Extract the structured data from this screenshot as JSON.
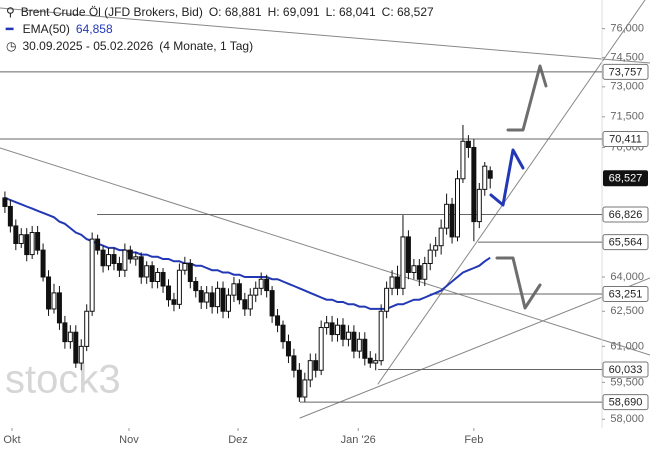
{
  "header": {
    "instrument": "Brent Crude Öl (JFD Brokers, Bid)",
    "ohlc": [
      "O: 68,881",
      "H: 69,091",
      "L: 68,041",
      "C: 68,527"
    ],
    "indicator_value": "64,858",
    "range": "30.09.2025 - 05.02.2026",
    "span": "(4 Monate, 1 Tag)"
  },
  "watermark": "stock3",
  "chart_data": {
    "type": "candlestick",
    "log_scale": true,
    "color_up": "#ffffff",
    "color_down": "#111111",
    "open": [
      67.6,
      67.2,
      66.3,
      65.5,
      65.9,
      65.0,
      66.0,
      65.2,
      64.0,
      62.6,
      63.3,
      62.0,
      61.2,
      61.6,
      60.3,
      61.0,
      62.5,
      65.7,
      65.2,
      64.5,
      65.0,
      64.6,
      64.3,
      65.2,
      64.8,
      64.9,
      64.0,
      64.5,
      63.8,
      64.2,
      63.6,
      63.0,
      62.8,
      64.3,
      64.6,
      63.8,
      63.4,
      62.9,
      63.3,
      62.7,
      63.5,
      62.5,
      63.2,
      63.7,
      63.0,
      62.6,
      63.2,
      63.5,
      63.9,
      63.4,
      62.3,
      61.9,
      61.2,
      60.6,
      60.0,
      58.9,
      59.6,
      60.4,
      60.0,
      61.8,
      62.0,
      61.5,
      61.9,
      61.3,
      61.6,
      60.8,
      61.3,
      60.5,
      60.3,
      60.4,
      62.5,
      63.5,
      64.0,
      63.5,
      65.8,
      64.2,
      64.5,
      63.9,
      64.6,
      65.2,
      65.4,
      66.2,
      67.3,
      65.8,
      68.5,
      70.3,
      70.0,
      66.5,
      68.0,
      68.881
    ],
    "high": [
      67.9,
      67.5,
      66.6,
      66.2,
      66.2,
      66.3,
      66.3,
      65.5,
      64.3,
      63.7,
      63.6,
      62.3,
      61.9,
      61.9,
      61.3,
      62.8,
      66.0,
      65.9,
      65.4,
      65.3,
      65.3,
      64.9,
      65.5,
      65.4,
      65.1,
      65.1,
      64.7,
      64.7,
      64.4,
      64.4,
      63.9,
      63.3,
      64.6,
      64.9,
      64.8,
      64.0,
      63.6,
      63.6,
      63.6,
      63.8,
      63.8,
      63.5,
      64.0,
      63.9,
      63.3,
      63.5,
      63.8,
      64.2,
      64.1,
      63.6,
      62.6,
      62.1,
      61.5,
      60.9,
      60.3,
      59.9,
      60.7,
      60.7,
      62.1,
      62.3,
      62.3,
      62.2,
      62.2,
      61.9,
      61.9,
      61.6,
      61.6,
      60.8,
      60.7,
      62.8,
      63.8,
      64.3,
      64.5,
      66.8,
      66.1,
      64.8,
      64.8,
      64.9,
      65.5,
      65.8,
      66.6,
      67.8,
      67.6,
      68.9,
      71.1,
      70.6,
      70.4,
      68.3,
      69.3,
      69.091
    ],
    "low": [
      66.9,
      66.0,
      65.2,
      65.3,
      64.7,
      64.8,
      65.0,
      63.8,
      62.3,
      62.4,
      61.7,
      60.9,
      60.9,
      60.1,
      60.0,
      60.8,
      62.3,
      65.0,
      64.2,
      64.3,
      64.3,
      64.0,
      64.0,
      64.6,
      64.5,
      63.7,
      63.7,
      63.5,
      63.5,
      63.3,
      62.7,
      62.5,
      62.6,
      64.1,
      63.5,
      63.1,
      62.6,
      62.6,
      62.4,
      62.4,
      62.2,
      62.2,
      62.9,
      62.8,
      62.3,
      62.3,
      62.9,
      63.2,
      63.1,
      62.0,
      61.6,
      60.9,
      60.3,
      59.7,
      58.7,
      58.7,
      59.3,
      59.7,
      59.8,
      61.5,
      61.2,
      61.2,
      61.0,
      61.0,
      60.5,
      60.5,
      60.2,
      60.1,
      60.0,
      60.2,
      62.2,
      63.2,
      63.2,
      63.2,
      63.9,
      63.9,
      63.6,
      63.6,
      64.3,
      64.9,
      65.0,
      65.9,
      65.5,
      65.6,
      68.3,
      69.5,
      65.6,
      66.2,
      67.7,
      68.041
    ],
    "close": [
      67.2,
      66.3,
      65.5,
      65.9,
      65.0,
      66.0,
      65.2,
      64.0,
      62.6,
      63.3,
      62.0,
      61.2,
      61.6,
      60.3,
      61.0,
      62.5,
      65.7,
      65.2,
      64.5,
      65.0,
      64.6,
      64.3,
      65.2,
      64.8,
      64.9,
      64.0,
      64.5,
      63.8,
      64.2,
      63.6,
      63.0,
      62.8,
      64.3,
      64.6,
      63.8,
      63.4,
      62.9,
      63.3,
      62.7,
      63.5,
      62.5,
      63.2,
      63.7,
      63.0,
      62.6,
      63.2,
      63.5,
      63.9,
      63.4,
      62.3,
      61.9,
      61.2,
      60.6,
      60.0,
      58.9,
      59.6,
      60.4,
      60.0,
      61.8,
      62.0,
      61.5,
      61.9,
      61.3,
      61.6,
      60.8,
      61.3,
      60.5,
      60.3,
      60.4,
      62.5,
      63.5,
      64.0,
      63.5,
      65.8,
      64.2,
      64.5,
      63.9,
      64.6,
      65.2,
      65.4,
      66.2,
      67.3,
      65.8,
      68.5,
      70.3,
      70.0,
      66.5,
      68.0,
      69.1,
      68.527
    ],
    "ema": {
      "name": "EMA(50)",
      "color": "#2338b5",
      "values": [
        67.6,
        67.5,
        67.4,
        67.3,
        67.2,
        67.1,
        67.0,
        66.9,
        66.8,
        66.7,
        66.5,
        66.4,
        66.2,
        66.0,
        65.9,
        65.7,
        65.6,
        65.5,
        65.4,
        65.3,
        65.3,
        65.2,
        65.2,
        65.1,
        65.1,
        65.0,
        65.0,
        64.9,
        64.9,
        64.8,
        64.8,
        64.7,
        64.7,
        64.6,
        64.6,
        64.5,
        64.5,
        64.4,
        64.3,
        64.3,
        64.2,
        64.2,
        64.1,
        64.1,
        64.0,
        64.0,
        64.0,
        64.0,
        64.0,
        63.9,
        63.9,
        63.8,
        63.7,
        63.6,
        63.5,
        63.4,
        63.3,
        63.2,
        63.1,
        63.0,
        63.0,
        62.9,
        62.9,
        62.8,
        62.8,
        62.7,
        62.7,
        62.6,
        62.6,
        62.6,
        62.6,
        62.7,
        62.8,
        62.8,
        62.9,
        63.0,
        63.0,
        63.1,
        63.2,
        63.3,
        63.4,
        63.6,
        63.8,
        64.0,
        64.2,
        64.3,
        64.4,
        64.5,
        64.7,
        64.858
      ]
    },
    "xlim": [
      -0.9,
      109.5
    ],
    "xticks": [
      {
        "value": 1.3,
        "label": "Okt"
      },
      {
        "value": 22.75,
        "label": "Nov"
      },
      {
        "value": 42.75,
        "label": "Dez"
      },
      {
        "value": 64.8,
        "label": "Jan '26"
      },
      {
        "value": 86,
        "label": "Feb"
      }
    ],
    "ylim": [
      57.65,
      77.52
    ],
    "yticks": [
      {
        "value": 76,
        "label": "76,000"
      },
      {
        "value": 74.5,
        "label": "74,500"
      },
      {
        "value": 73,
        "label": "73,000"
      },
      {
        "value": 71.5,
        "label": "71,500"
      },
      {
        "value": 70,
        "label": "70,000"
      },
      {
        "value": 64,
        "label": "64,000"
      },
      {
        "value": 62.5,
        "label": "62,500"
      },
      {
        "value": 61,
        "label": "61,000"
      },
      {
        "value": 59.5,
        "label": "59,500"
      },
      {
        "value": 58,
        "label": "58,000"
      }
    ],
    "levels": [
      {
        "value": 73.757,
        "label": "73,757"
      },
      {
        "value": 70.411,
        "label": "70,411"
      },
      {
        "value": 66.826,
        "label": "66,826"
      },
      {
        "value": 65.564,
        "label": "65,564"
      },
      {
        "value": 63.251,
        "label": "63,251"
      },
      {
        "value": 60.033,
        "label": "60,033"
      },
      {
        "value": 58.69,
        "label": "58,690"
      }
    ],
    "last": {
      "value": 68.527,
      "label": "68,527"
    }
  }
}
